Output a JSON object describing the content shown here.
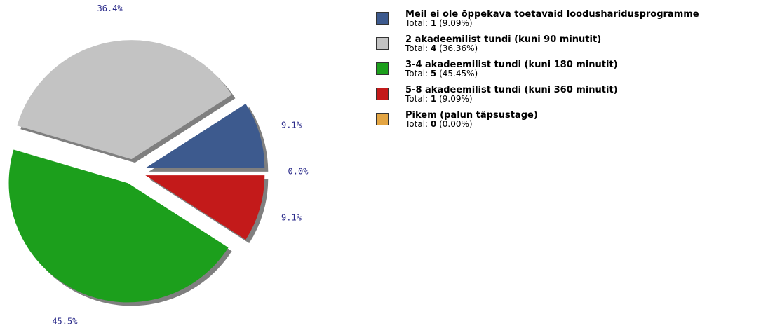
{
  "chart_data": {
    "type": "pie",
    "categories": [
      "Meil ei ole õppekava toetavaid loodusharidusprogramme",
      "2 akadeemilist tundi (kuni 90 minutit)",
      "3-4 akadeemilist tundi (kuni 180 minutit)",
      "5-8 akadeemilist tundi (kuni 360 minutit)",
      "Pikem (palun täpsustage)"
    ],
    "values": [
      9.1,
      36.4,
      45.5,
      9.1,
      0.0
    ],
    "value_labels": [
      "9.1%",
      "36.4%",
      "45.5%",
      "9.1%",
      "0.0%"
    ],
    "colors": [
      "#3d5a8e",
      "#c3c3c3",
      "#1c9f1c",
      "#c31a1a",
      "#e3a543"
    ],
    "legend_total_label": "Total:",
    "counts": [
      1,
      4,
      5,
      1,
      0
    ],
    "count_percent_labels": [
      "(9.09%)",
      "(36.36%)",
      "(45.45%)",
      "(9.09%)",
      "(0.00%)"
    ]
  }
}
